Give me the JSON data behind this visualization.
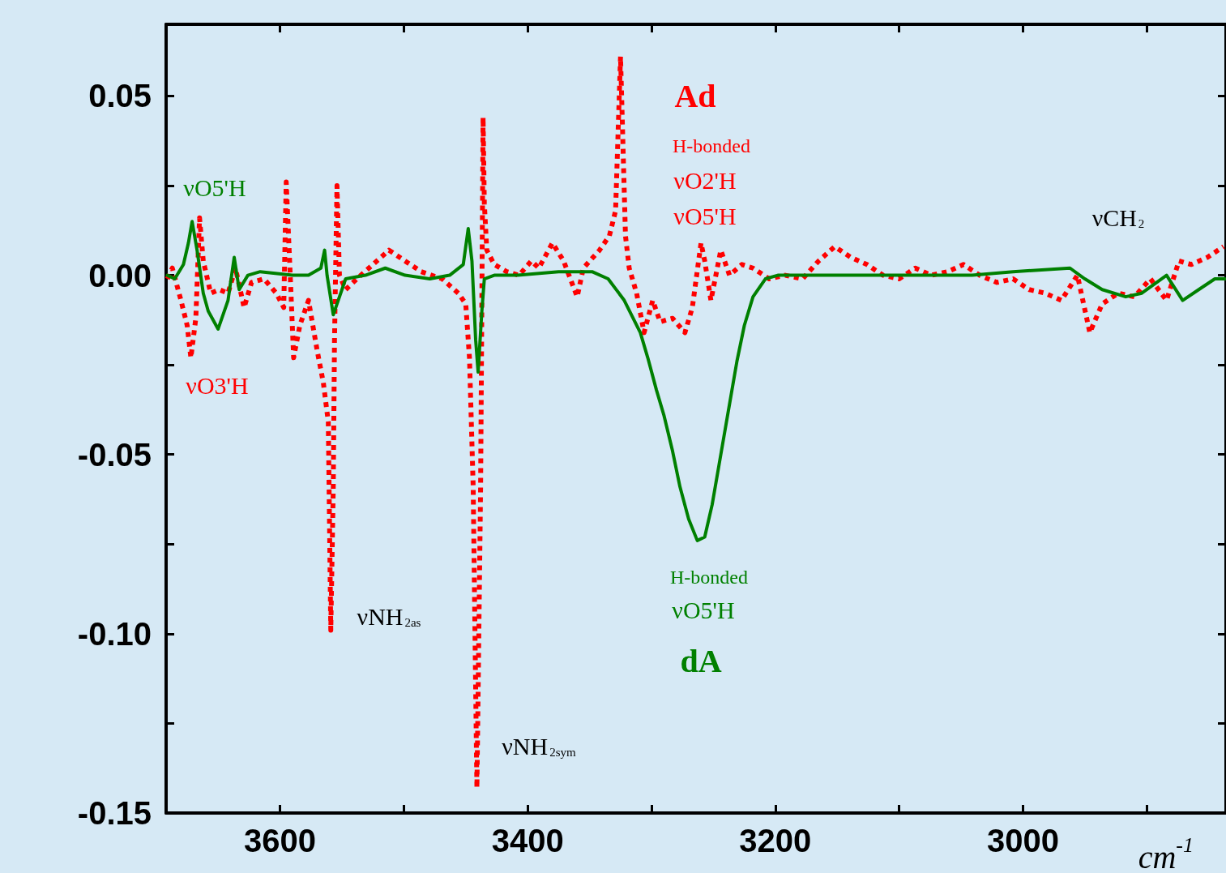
{
  "chart_data": {
    "type": "line",
    "xlabel": "cm$^{-1}$",
    "xlim": [
      3692,
      2836
    ],
    "xticks": [
      3600,
      {
        "value": 3500,
        "label": null
      },
      3400,
      {
        "value": 3300,
        "label": null
      },
      3200,
      {
        "value": 3100,
        "label": null
      },
      3000,
      {
        "value": 2900,
        "label": null
      }
    ],
    "ylim": [
      -0.15,
      0.07
    ],
    "yticks": [
      -0.15,
      {
        "value": -0.125,
        "label": null
      },
      {
        "value": -0.1,
        "label": "-0.10"
      },
      {
        "value": -0.075,
        "label": null
      },
      -0.05,
      {
        "value": -0.025,
        "label": null
      },
      {
        "value": 0,
        "label": "0.00"
      },
      {
        "value": 0.025,
        "label": null
      },
      0.05
    ],
    "grid": false,
    "legend": false,
    "series": [
      {
        "name": "Ad",
        "color": "#ff0000",
        "line_style": "dotted",
        "x": [
          3691,
          3687,
          3680,
          3675,
          3672,
          3668,
          3665,
          3662,
          3656,
          3649,
          3642,
          3636,
          3629,
          3623,
          3613,
          3603,
          3597,
          3595,
          3592,
          3589,
          3584,
          3577,
          3570,
          3565,
          3561,
          3559,
          3557,
          3556,
          3554,
          3552,
          3547,
          3538,
          3525,
          3512,
          3499,
          3486,
          3469,
          3456,
          3450,
          3447,
          3444,
          3441,
          3440,
          3438,
          3436,
          3435,
          3433,
          3427,
          3417,
          3407,
          3397,
          3391,
          3380,
          3371,
          3360,
          3355,
          3342,
          3334,
          3329,
          3325,
          3323,
          3321,
          3318,
          3312,
          3306,
          3299,
          3293,
          3283,
          3273,
          3267,
          3260,
          3257,
          3252,
          3244,
          3237,
          3227,
          3218,
          3205,
          3192,
          3178,
          3165,
          3152,
          3139,
          3126,
          3113,
          3100,
          3087,
          3074,
          3061,
          3048,
          3035,
          3021,
          3008,
          2995,
          2982,
          2969,
          2956,
          2946,
          2936,
          2923,
          2910,
          2897,
          2884,
          2874,
          2864,
          2851,
          2838
        ],
        "values": [
          -0.001,
          0.002,
          -0.007,
          -0.014,
          -0.023,
          -0.012,
          0.016,
          0.004,
          -0.005,
          -0.004,
          -0.005,
          0.002,
          -0.009,
          -0.002,
          -0.001,
          -0.005,
          -0.009,
          0.026,
          0.002,
          -0.023,
          -0.014,
          -0.007,
          -0.021,
          -0.03,
          -0.041,
          -0.099,
          -0.059,
          -0.018,
          0.025,
          0.0,
          -0.004,
          -0.001,
          0.003,
          0.007,
          0.004,
          0.001,
          -0.001,
          -0.005,
          -0.008,
          -0.023,
          -0.059,
          -0.143,
          -0.116,
          -0.059,
          0.044,
          0.02,
          0.007,
          0.003,
          0.001,
          0.0,
          0.004,
          0.002,
          0.009,
          0.004,
          -0.006,
          0.002,
          0.007,
          0.011,
          0.018,
          0.061,
          0.036,
          0.011,
          0.002,
          -0.005,
          -0.016,
          -0.007,
          -0.013,
          -0.012,
          -0.016,
          -0.009,
          0.009,
          0.004,
          -0.007,
          0.007,
          0.0,
          0.003,
          0.002,
          -0.001,
          0.0,
          -0.001,
          0.004,
          0.008,
          0.005,
          0.003,
          0.0,
          -0.001,
          0.002,
          0.0,
          0.001,
          0.003,
          0.0,
          -0.002,
          -0.001,
          -0.004,
          -0.005,
          -0.007,
          0.0,
          -0.016,
          -0.008,
          -0.005,
          -0.006,
          -0.001,
          -0.007,
          0.004,
          0.003,
          0.005,
          0.008
        ]
      },
      {
        "name": "dA",
        "color": "#008000",
        "line_style": "solid",
        "x": [
          3691,
          3685,
          3678,
          3674,
          3671,
          3667,
          3662,
          3658,
          3650,
          3642,
          3637,
          3633,
          3626,
          3616,
          3590,
          3577,
          3567,
          3564,
          3562,
          3557,
          3553,
          3547,
          3531,
          3515,
          3499,
          3479,
          3463,
          3452,
          3448,
          3445,
          3442,
          3440,
          3437,
          3435,
          3427,
          3408,
          3375,
          3348,
          3335,
          3322,
          3309,
          3303,
          3296,
          3290,
          3283,
          3277,
          3270,
          3263,
          3257,
          3251,
          3244,
          3237,
          3231,
          3225,
          3218,
          3208,
          3198,
          3172,
          3139,
          3107,
          3073,
          3041,
          3008,
          2962,
          2950,
          2936,
          2917,
          2904,
          2884,
          2871,
          2858,
          2845,
          2837
        ],
        "values": [
          0.0,
          -0.001,
          0.003,
          0.009,
          0.015,
          0.007,
          -0.005,
          -0.01,
          -0.015,
          -0.007,
          0.005,
          -0.004,
          0.0,
          0.001,
          0.0,
          0.0,
          0.002,
          0.007,
          0.0,
          -0.011,
          -0.007,
          -0.001,
          0.0,
          0.002,
          0.0,
          -0.001,
          0.0,
          0.003,
          0.013,
          0.004,
          -0.018,
          -0.027,
          -0.01,
          -0.001,
          0.0,
          0.0,
          0.001,
          0.001,
          -0.001,
          -0.007,
          -0.016,
          -0.023,
          -0.032,
          -0.039,
          -0.049,
          -0.059,
          -0.068,
          -0.074,
          -0.073,
          -0.064,
          -0.05,
          -0.036,
          -0.024,
          -0.014,
          -0.006,
          -0.001,
          0.0,
          0.0,
          0.0,
          0.0,
          0.0,
          0.0,
          0.001,
          0.002,
          -0.001,
          -0.004,
          -0.006,
          -0.005,
          0.0,
          -0.007,
          -0.004,
          -0.001,
          -0.001
        ]
      }
    ],
    "annotations": [
      "νO5'H",
      "νO3'H",
      "νNH$_{2as}$",
      "νNH$_{2sym}$",
      "H-bonded",
      "νO2'H",
      "νO5'H",
      "νCH$_{2}$",
      "H-bonded",
      "νO5'H"
    ]
  }
}
